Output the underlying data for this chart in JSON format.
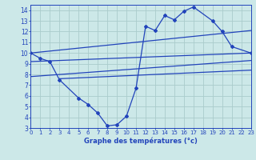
{
  "title": "Graphe des températures (°c)",
  "bg_color": "#cce8e8",
  "grid_color": "#aacccc",
  "line_color": "#2244bb",
  "temp_data": [
    [
      0,
      10.0
    ],
    [
      1,
      9.5
    ],
    [
      2,
      9.2
    ],
    [
      3,
      7.5
    ],
    [
      5,
      5.8
    ],
    [
      6,
      5.2
    ],
    [
      7,
      4.4
    ],
    [
      8,
      3.2
    ],
    [
      9,
      3.3
    ],
    [
      10,
      4.1
    ],
    [
      11,
      6.7
    ],
    [
      12,
      12.5
    ],
    [
      13,
      12.1
    ],
    [
      14,
      13.5
    ],
    [
      15,
      13.1
    ],
    [
      16,
      13.9
    ],
    [
      17,
      14.3
    ],
    [
      19,
      13.0
    ],
    [
      20,
      12.0
    ],
    [
      21,
      10.6
    ],
    [
      23,
      10.0
    ]
  ],
  "upper_line": [
    [
      0,
      10.0
    ],
    [
      23,
      12.1
    ]
  ],
  "lower_line": [
    [
      0,
      9.2
    ],
    [
      23,
      10.0
    ]
  ],
  "upper_line2": [
    [
      0,
      7.8
    ],
    [
      23,
      9.3
    ]
  ],
  "lower_line2": [
    [
      3,
      7.6
    ],
    [
      23,
      8.4
    ]
  ],
  "ylim": [
    3,
    14.5
  ],
  "xlim": [
    0,
    23
  ],
  "yticks": [
    3,
    4,
    5,
    6,
    7,
    8,
    9,
    10,
    11,
    12,
    13,
    14
  ],
  "xticks": [
    0,
    1,
    2,
    3,
    4,
    5,
    6,
    7,
    8,
    9,
    10,
    11,
    12,
    13,
    14,
    15,
    16,
    17,
    18,
    19,
    20,
    21,
    22,
    23
  ]
}
